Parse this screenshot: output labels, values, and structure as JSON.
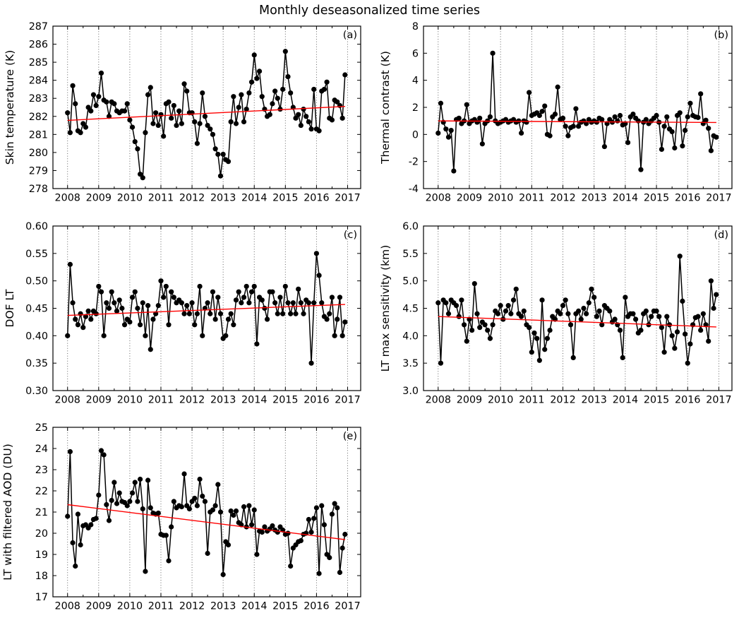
{
  "title": "Monthly deseasonalized time series",
  "colors": {
    "series_line": "#000000",
    "marker": "#000000",
    "trend_line": "#ff0000",
    "gridline": "#555555",
    "axis": "#000000",
    "background": "#ffffff"
  },
  "x_axis": {
    "tick_labels": [
      "2008",
      "2009",
      "2010",
      "2011",
      "2012",
      "2013",
      "2014",
      "2015",
      "2016",
      "2017"
    ],
    "tick_years": [
      2008,
      2009,
      2010,
      2011,
      2012,
      2013,
      2014,
      2015,
      2016,
      2017
    ],
    "xlim": [
      2007.53,
      2017.42
    ],
    "minor_tick_step_years": 0.5,
    "grid": "dotted vertical lines at each year"
  },
  "chart_data": [
    {
      "id": "a",
      "type": "line",
      "panel_label": "(a)",
      "ylabel": "Skin temperature (K)",
      "ylim": [
        278,
        287
      ],
      "ytick_labels": [
        "278",
        "279",
        "280",
        "281",
        "282",
        "283",
        "284",
        "285",
        "286",
        "287"
      ],
      "x_start_year": 2008.0,
      "x_step_years": 0.0833333,
      "values": [
        282.2,
        281.1,
        283.7,
        282.7,
        281.2,
        281.1,
        281.6,
        281.4,
        282.5,
        282.3,
        283.2,
        282.6,
        283.1,
        284.4,
        282.9,
        282.8,
        282.0,
        282.8,
        282.7,
        282.3,
        282.2,
        282.3,
        282.3,
        282.7,
        281.8,
        281.4,
        280.6,
        280.2,
        278.8,
        278.6,
        281.1,
        283.2,
        283.6,
        281.6,
        282.2,
        281.5,
        282.1,
        280.9,
        282.7,
        282.8,
        281.9,
        282.6,
        281.5,
        282.3,
        281.6,
        283.8,
        283.4,
        282.2,
        282.2,
        281.7,
        280.5,
        281.6,
        283.3,
        282.0,
        281.5,
        281.3,
        281.0,
        280.2,
        279.9,
        278.7,
        279.9,
        279.6,
        279.5,
        281.7,
        283.1,
        281.6,
        282.5,
        283.2,
        281.7,
        282.4,
        283.3,
        283.9,
        285.4,
        284.1,
        284.5,
        283.1,
        282.4,
        282.0,
        282.1,
        282.7,
        283.4,
        283.0,
        282.4,
        283.5,
        285.6,
        284.2,
        283.3,
        282.5,
        281.9,
        282.1,
        281.5,
        282.4,
        282.0,
        281.7,
        281.3,
        283.5,
        281.3,
        281.2,
        283.4,
        283.5,
        283.9,
        281.9,
        281.8,
        282.9,
        282.8,
        282.6,
        281.9,
        284.3
      ],
      "trend": {
        "x0": 2008.0,
        "y0": 281.78,
        "x1": 2016.92,
        "y1": 282.55
      }
    },
    {
      "id": "b",
      "type": "line",
      "panel_label": "(b)",
      "ylabel": "Thermal contrast (K)",
      "ylim": [
        -4,
        8
      ],
      "ytick_labels": [
        "-4",
        "-2",
        "0",
        "2",
        "4",
        "6",
        "8"
      ],
      "x_start_year": 2008.0,
      "x_step_years": 0.0833333,
      "values": [
        0.1,
        2.3,
        0.9,
        0.4,
        -0.2,
        0.3,
        -2.7,
        1.1,
        1.2,
        0.8,
        1.0,
        2.2,
        0.8,
        1.0,
        1.1,
        0.9,
        1.2,
        -0.7,
        0.8,
        1.0,
        1.3,
        6.0,
        1.0,
        0.8,
        0.9,
        1.0,
        1.1,
        0.9,
        1.0,
        1.1,
        0.9,
        1.0,
        0.1,
        1.0,
        0.9,
        3.1,
        1.4,
        1.5,
        1.6,
        1.4,
        1.7,
        2.1,
        0.0,
        -0.1,
        1.3,
        1.5,
        3.5,
        1.1,
        1.2,
        0.6,
        -0.1,
        0.5,
        0.6,
        1.9,
        0.6,
        0.9,
        1.0,
        0.8,
        1.1,
        0.9,
        1.0,
        0.9,
        1.2,
        1.1,
        -0.9,
        0.8,
        1.1,
        0.9,
        1.3,
        1.0,
        1.4,
        0.7,
        0.8,
        -0.6,
        1.3,
        1.5,
        1.2,
        1.0,
        -2.6,
        0.9,
        1.1,
        0.8,
        1.0,
        1.2,
        1.4,
        0.9,
        -1.1,
        0.6,
        1.3,
        0.4,
        0.2,
        -1.0,
        1.4,
        1.6,
        -0.85,
        0.3,
        1.3,
        2.3,
        1.4,
        1.3,
        1.25,
        3.0,
        0.8,
        1.05,
        0.45,
        -1.2,
        -0.1,
        -0.2
      ],
      "trend": {
        "x0": 2008.0,
        "y0": 1.0,
        "x1": 2016.92,
        "y1": 0.88
      }
    },
    {
      "id": "c",
      "type": "line",
      "panel_label": "(c)",
      "ylabel": "DOF LT",
      "ylim": [
        0.3,
        0.6
      ],
      "ytick_labels": [
        "0.30",
        "0.35",
        "0.40",
        "0.45",
        "0.50",
        "0.55",
        "0.60"
      ],
      "x_start_year": 2008.0,
      "x_step_years": 0.0833333,
      "values": [
        0.4,
        0.53,
        0.46,
        0.43,
        0.42,
        0.44,
        0.415,
        0.435,
        0.445,
        0.43,
        0.445,
        0.44,
        0.49,
        0.48,
        0.4,
        0.46,
        0.45,
        0.48,
        0.46,
        0.445,
        0.465,
        0.45,
        0.42,
        0.43,
        0.425,
        0.47,
        0.48,
        0.45,
        0.42,
        0.46,
        0.4,
        0.455,
        0.375,
        0.43,
        0.44,
        0.455,
        0.5,
        0.47,
        0.49,
        0.42,
        0.48,
        0.47,
        0.46,
        0.465,
        0.46,
        0.44,
        0.455,
        0.44,
        0.46,
        0.42,
        0.44,
        0.49,
        0.4,
        0.45,
        0.46,
        0.44,
        0.48,
        0.43,
        0.47,
        0.44,
        0.395,
        0.4,
        0.43,
        0.44,
        0.42,
        0.465,
        0.48,
        0.46,
        0.47,
        0.49,
        0.46,
        0.48,
        0.49,
        0.385,
        0.47,
        0.465,
        0.45,
        0.43,
        0.48,
        0.48,
        0.46,
        0.44,
        0.47,
        0.44,
        0.49,
        0.46,
        0.44,
        0.46,
        0.44,
        0.485,
        0.46,
        0.44,
        0.465,
        0.46,
        0.35,
        0.46,
        0.55,
        0.51,
        0.46,
        0.435,
        0.43,
        0.44,
        0.47,
        0.4,
        0.43,
        0.47,
        0.4,
        0.425
      ],
      "trend": {
        "x0": 2008.0,
        "y0": 0.437,
        "x1": 2016.92,
        "y1": 0.457
      }
    },
    {
      "id": "d",
      "type": "line",
      "panel_label": "(d)",
      "ylabel": "LT max sensitivity (km)",
      "ylim": [
        3.0,
        6.0
      ],
      "ytick_labels": [
        "3.0",
        "3.5",
        "4.0",
        "4.5",
        "5.0",
        "5.5",
        "6.0"
      ],
      "x_start_year": 2008.0,
      "x_step_years": 0.0833333,
      "values": [
        4.6,
        3.5,
        4.65,
        4.6,
        4.4,
        4.65,
        4.6,
        4.55,
        4.35,
        4.65,
        4.2,
        3.9,
        4.3,
        4.1,
        4.95,
        4.4,
        4.15,
        4.25,
        4.2,
        4.1,
        3.95,
        4.2,
        4.45,
        4.4,
        4.55,
        4.3,
        4.45,
        4.55,
        4.4,
        4.65,
        4.85,
        4.4,
        4.35,
        4.45,
        4.2,
        4.15,
        3.7,
        4.05,
        3.95,
        3.55,
        4.65,
        3.75,
        3.95,
        4.1,
        4.35,
        4.3,
        4.45,
        4.4,
        4.55,
        4.65,
        4.4,
        4.2,
        3.6,
        4.4,
        4.45,
        4.3,
        4.5,
        4.4,
        4.6,
        4.85,
        4.7,
        4.35,
        4.45,
        4.2,
        4.55,
        4.5,
        4.45,
        4.25,
        4.3,
        4.2,
        4.1,
        3.6,
        4.7,
        4.35,
        4.4,
        4.4,
        4.3,
        4.05,
        4.1,
        4.4,
        4.45,
        4.2,
        4.35,
        4.45,
        4.45,
        4.35,
        4.15,
        3.7,
        4.35,
        4.2,
        4.0,
        3.77,
        4.07,
        5.45,
        4.63,
        4.03,
        3.5,
        3.85,
        4.2,
        4.33,
        4.35,
        4.1,
        4.4,
        4.2,
        3.9,
        5.0,
        4.5,
        4.75
      ],
      "trend": {
        "x0": 2008.0,
        "y0": 4.35,
        "x1": 2016.92,
        "y1": 4.16
      }
    },
    {
      "id": "e",
      "type": "line",
      "panel_label": "(e)",
      "ylabel": "LT with filtered AOD (DU)",
      "ylim": [
        17,
        25
      ],
      "ytick_labels": [
        "17",
        "18",
        "19",
        "20",
        "21",
        "22",
        "23",
        "24",
        "25"
      ],
      "x_start_year": 2008.0,
      "x_step_years": 0.0833333,
      "values": [
        20.8,
        23.85,
        19.55,
        18.45,
        20.9,
        19.45,
        20.35,
        20.4,
        20.25,
        20.4,
        20.65,
        20.7,
        21.8,
        23.9,
        23.7,
        21.35,
        20.6,
        21.55,
        22.4,
        21.4,
        21.9,
        21.5,
        21.45,
        21.3,
        21.5,
        21.9,
        22.4,
        21.5,
        22.55,
        21.15,
        18.2,
        22.5,
        21.2,
        20.95,
        20.9,
        20.95,
        19.95,
        19.9,
        19.9,
        18.7,
        20.3,
        21.5,
        21.2,
        21.3,
        21.25,
        22.8,
        21.3,
        21.15,
        21.5,
        21.65,
        21.3,
        22.55,
        21.75,
        21.5,
        19.05,
        21.0,
        21.1,
        21.3,
        22.3,
        21.0,
        18.05,
        19.6,
        19.45,
        21.05,
        20.85,
        21.05,
        20.5,
        20.4,
        21.25,
        20.3,
        21.3,
        20.4,
        21.1,
        19.0,
        20.1,
        20.05,
        20.3,
        20.1,
        20.2,
        20.35,
        20.15,
        20.05,
        20.3,
        20.15,
        19.95,
        20.0,
        18.45,
        19.3,
        19.45,
        19.6,
        19.65,
        19.95,
        20.0,
        20.65,
        20.05,
        20.7,
        21.2,
        18.1,
        21.3,
        20.4,
        19.0,
        18.85,
        20.9,
        21.4,
        21.2,
        18.15,
        19.3,
        19.95
      ],
      "trend": {
        "x0": 2008.0,
        "y0": 21.35,
        "x1": 2016.92,
        "y1": 19.7
      }
    }
  ]
}
